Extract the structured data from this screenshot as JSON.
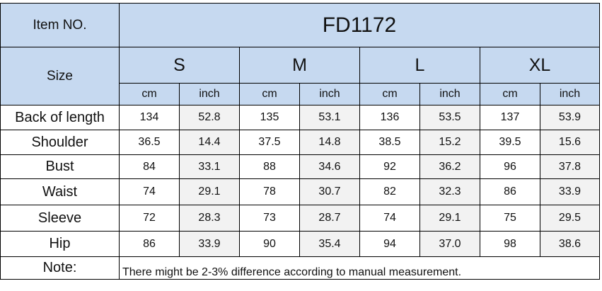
{
  "header": {
    "item_label": "Item NO.",
    "product_code": "FD1172",
    "size_label": "Size"
  },
  "sizes": [
    "S",
    "M",
    "L",
    "XL"
  ],
  "units": [
    "cm",
    "inch"
  ],
  "rows": [
    {
      "label": "Back of length",
      "values": [
        "134",
        "52.8",
        "135",
        "53.1",
        "136",
        "53.5",
        "137",
        "53.9"
      ]
    },
    {
      "label": "Shoulder",
      "values": [
        "36.5",
        "14.4",
        "37.5",
        "14.8",
        "38.5",
        "15.2",
        "39.5",
        "15.6"
      ]
    },
    {
      "label": "Bust",
      "values": [
        "84",
        "33.1",
        "88",
        "34.6",
        "92",
        "36.2",
        "96",
        "37.8"
      ]
    },
    {
      "label": "Waist",
      "values": [
        "74",
        "29.1",
        "78",
        "30.7",
        "82",
        "32.3",
        "86",
        "33.9"
      ]
    },
    {
      "label": "Sleeve",
      "values": [
        "72",
        "28.3",
        "73",
        "28.7",
        "74",
        "29.1",
        "75",
        "29.5"
      ]
    },
    {
      "label": "Hip",
      "values": [
        "86",
        "33.9",
        "90",
        "35.4",
        "94",
        "37.0",
        "98",
        "38.6"
      ]
    }
  ],
  "note": {
    "label": "Note:",
    "text": "There might be 2-3% difference according to manual measurement."
  }
}
